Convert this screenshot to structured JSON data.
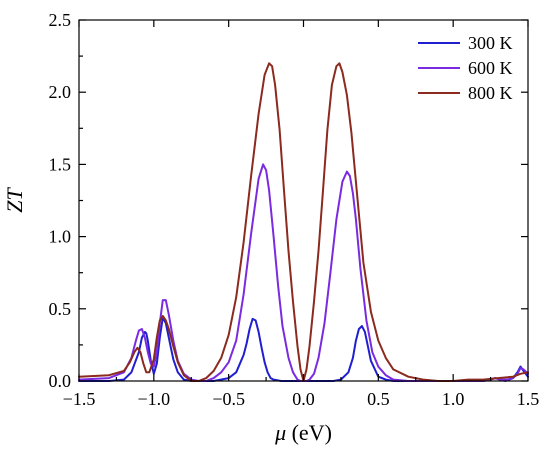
{
  "chart_data": {
    "type": "line",
    "xlabel_symbol": "μ",
    "xlabel_unit": " (eV)",
    "ylabel": "ZT",
    "xlim": [
      -1.5,
      1.5
    ],
    "ylim": [
      0,
      2.5
    ],
    "xticks": [
      -1.5,
      -1.0,
      -0.5,
      0.0,
      0.5,
      1.0,
      1.5
    ],
    "xtick_labels": [
      "−1.5",
      "−1.0",
      "−0.5",
      "0.0",
      "0.5",
      "1.0",
      "1.5"
    ],
    "yticks": [
      0,
      0.5,
      1.0,
      1.5,
      2.0,
      2.5
    ],
    "ytick_labels": [
      "0.0",
      "0.5",
      "1.0",
      "1.5",
      "2.0",
      "2.5"
    ],
    "legend_position": "top-right",
    "grid": false,
    "series": [
      {
        "name": "300 K",
        "color": "#1f1fd0",
        "x": [
          -1.5,
          -1.3,
          -1.2,
          -1.15,
          -1.1,
          -1.08,
          -1.06,
          -1.05,
          -1.04,
          -1.02,
          -1.0,
          -0.98,
          -0.96,
          -0.94,
          -0.92,
          -0.9,
          -0.87,
          -0.84,
          -0.8,
          -0.75,
          -0.7,
          -0.6,
          -0.5,
          -0.45,
          -0.4,
          -0.38,
          -0.36,
          -0.34,
          -0.32,
          -0.3,
          -0.28,
          -0.26,
          -0.24,
          -0.22,
          -0.2,
          -0.15,
          -0.1,
          -0.05,
          -0.02,
          0.0,
          0.02,
          0.05,
          0.1,
          0.15,
          0.2,
          0.25,
          0.3,
          0.33,
          0.35,
          0.37,
          0.39,
          0.41,
          0.43,
          0.45,
          0.5,
          0.55,
          0.6,
          0.7,
          0.8,
          1.0,
          1.2,
          1.25,
          1.28,
          1.31,
          1.35,
          1.4,
          1.43,
          1.45,
          1.47,
          1.5
        ],
        "values": [
          0.0,
          0.0,
          0.01,
          0.06,
          0.2,
          0.3,
          0.34,
          0.33,
          0.28,
          0.14,
          0.05,
          0.12,
          0.3,
          0.44,
          0.4,
          0.3,
          0.15,
          0.06,
          0.01,
          0.0,
          0.0,
          0.0,
          0.02,
          0.06,
          0.18,
          0.26,
          0.36,
          0.43,
          0.42,
          0.34,
          0.23,
          0.13,
          0.06,
          0.02,
          0.01,
          0.0,
          0.0,
          0.0,
          0.0,
          0.0,
          0.0,
          0.0,
          0.0,
          0.0,
          0.0,
          0.01,
          0.06,
          0.16,
          0.28,
          0.36,
          0.38,
          0.34,
          0.24,
          0.14,
          0.03,
          0.01,
          0.0,
          0.0,
          0.0,
          0.0,
          0.0,
          0.01,
          0.02,
          0.01,
          0.0,
          0.02,
          0.06,
          0.1,
          0.07,
          0.03
        ]
      },
      {
        "name": "600 K",
        "color": "#7a2be0",
        "x": [
          -1.5,
          -1.3,
          -1.2,
          -1.15,
          -1.12,
          -1.1,
          -1.08,
          -1.06,
          -1.04,
          -1.02,
          -1.0,
          -0.98,
          -0.96,
          -0.94,
          -0.92,
          -0.9,
          -0.87,
          -0.84,
          -0.8,
          -0.75,
          -0.7,
          -0.65,
          -0.6,
          -0.55,
          -0.5,
          -0.45,
          -0.4,
          -0.35,
          -0.3,
          -0.27,
          -0.25,
          -0.23,
          -0.2,
          -0.17,
          -0.14,
          -0.1,
          -0.07,
          -0.04,
          -0.02,
          0.0,
          0.02,
          0.04,
          0.07,
          0.1,
          0.14,
          0.18,
          0.22,
          0.26,
          0.29,
          0.31,
          0.33,
          0.35,
          0.38,
          0.42,
          0.46,
          0.5,
          0.55,
          0.6,
          0.7,
          0.8,
          1.0,
          1.2,
          1.25,
          1.28,
          1.32,
          1.36,
          1.4,
          1.43,
          1.45,
          1.47,
          1.5
        ],
        "values": [
          0.01,
          0.02,
          0.06,
          0.16,
          0.28,
          0.35,
          0.36,
          0.3,
          0.2,
          0.12,
          0.1,
          0.2,
          0.4,
          0.56,
          0.56,
          0.46,
          0.28,
          0.14,
          0.05,
          0.01,
          0.0,
          0.0,
          0.02,
          0.06,
          0.13,
          0.28,
          0.6,
          1.02,
          1.4,
          1.5,
          1.46,
          1.32,
          1.0,
          0.66,
          0.38,
          0.16,
          0.06,
          0.01,
          0.0,
          0.0,
          0.0,
          0.01,
          0.05,
          0.16,
          0.4,
          0.75,
          1.12,
          1.38,
          1.45,
          1.42,
          1.3,
          1.12,
          0.78,
          0.42,
          0.2,
          0.1,
          0.04,
          0.01,
          0.0,
          0.0,
          0.0,
          0.0,
          0.01,
          0.02,
          0.01,
          0.01,
          0.02,
          0.05,
          0.09,
          0.08,
          0.05
        ]
      },
      {
        "name": "800 K",
        "color": "#8b2a1e",
        "x": [
          -1.5,
          -1.3,
          -1.2,
          -1.16,
          -1.13,
          -1.11,
          -1.09,
          -1.07,
          -1.05,
          -1.03,
          -1.0,
          -0.98,
          -0.96,
          -0.94,
          -0.92,
          -0.9,
          -0.87,
          -0.84,
          -0.8,
          -0.75,
          -0.7,
          -0.65,
          -0.6,
          -0.55,
          -0.5,
          -0.45,
          -0.4,
          -0.35,
          -0.3,
          -0.26,
          -0.23,
          -0.21,
          -0.19,
          -0.16,
          -0.13,
          -0.1,
          -0.07,
          -0.04,
          -0.02,
          0.0,
          0.02,
          0.04,
          0.07,
          0.1,
          0.13,
          0.16,
          0.19,
          0.22,
          0.24,
          0.26,
          0.29,
          0.32,
          0.35,
          0.4,
          0.45,
          0.5,
          0.55,
          0.6,
          0.7,
          0.8,
          0.9,
          1.0,
          1.1,
          1.2,
          1.3,
          1.4,
          1.45,
          1.5
        ],
        "values": [
          0.03,
          0.04,
          0.07,
          0.13,
          0.2,
          0.23,
          0.2,
          0.12,
          0.06,
          0.06,
          0.15,
          0.3,
          0.42,
          0.45,
          0.42,
          0.36,
          0.24,
          0.13,
          0.04,
          0.0,
          0.0,
          0.02,
          0.07,
          0.16,
          0.32,
          0.58,
          0.96,
          1.42,
          1.85,
          2.12,
          2.2,
          2.18,
          2.05,
          1.74,
          1.32,
          0.9,
          0.55,
          0.24,
          0.08,
          0.0,
          0.08,
          0.24,
          0.55,
          0.9,
          1.32,
          1.74,
          2.05,
          2.18,
          2.2,
          2.14,
          1.98,
          1.72,
          1.38,
          0.82,
          0.48,
          0.28,
          0.16,
          0.08,
          0.03,
          0.01,
          0.0,
          0.0,
          0.01,
          0.01,
          0.02,
          0.03,
          0.05,
          0.06
        ]
      }
    ]
  }
}
